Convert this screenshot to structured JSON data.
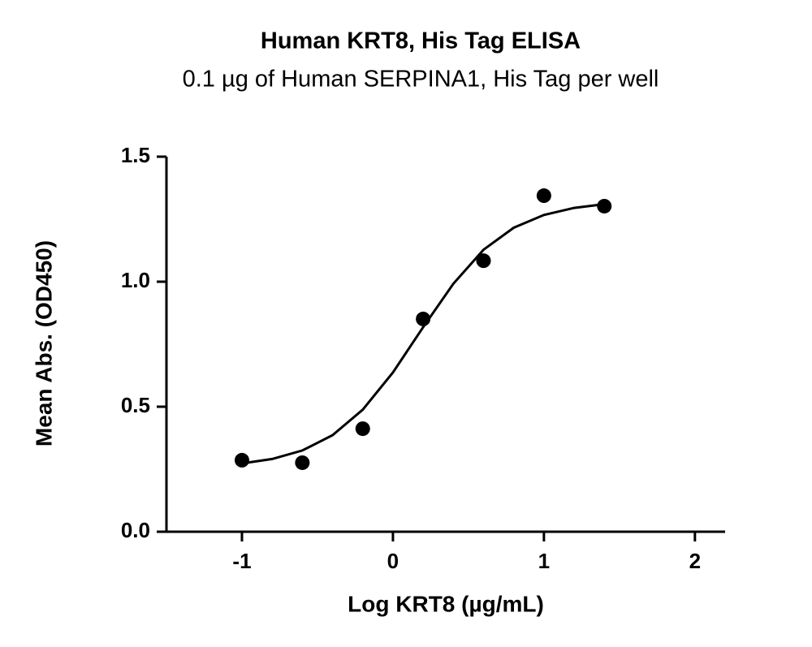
{
  "chart_data": {
    "type": "scatter",
    "title": "Human KRT8, His Tag ELISA",
    "subtitle": "0.1 µg of Human SERPINA1, His Tag per well",
    "x_label": "Log KRT8 (µg/mL)",
    "y_label": "Mean  Abs. (OD450)",
    "x": [
      -1,
      -0.6,
      -0.2,
      0.2,
      0.6,
      1.0,
      1.4
    ],
    "values": [
      0.286,
      0.276,
      0.412,
      0.851,
      1.084,
      1.344,
      1.302
    ],
    "color": "#000000",
    "curve": {
      "x": [
        -1,
        -0.8,
        -0.6,
        -0.4,
        -0.2,
        0,
        0.2,
        0.4,
        0.6,
        0.8,
        1.0,
        1.2,
        1.4
      ],
      "values": [
        0.273,
        0.291,
        0.325,
        0.386,
        0.488,
        0.637,
        0.818,
        0.992,
        1.128,
        1.216,
        1.267,
        1.295,
        1.31
      ]
    },
    "xlim": [
      -1.5,
      2.2
    ],
    "ylim": [
      0,
      1.5
    ],
    "xticks": [
      -1,
      0,
      1,
      2
    ],
    "yticks": [
      {
        "value": 0,
        "label": "0.0"
      },
      {
        "value": 0.5,
        "label": "0.5"
      },
      {
        "value": 1,
        "label": "1.0"
      },
      {
        "value": 1.5,
        "label": "1.5"
      }
    ]
  }
}
